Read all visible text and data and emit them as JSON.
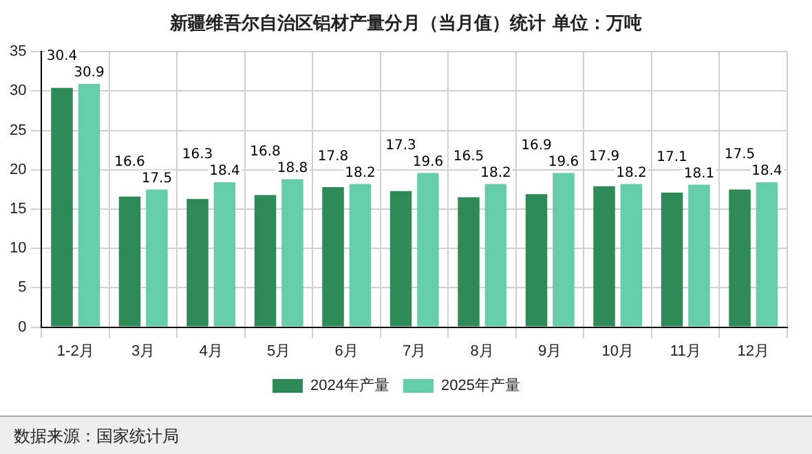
{
  "chart_data": {
    "type": "bar",
    "title": "新疆维吾尔自治区铝材产量分月（当月值）统计  单位：万吨",
    "categories": [
      "1-2月",
      "3月",
      "4月",
      "5月",
      "6月",
      "7月",
      "8月",
      "9月",
      "10月",
      "11月",
      "12月"
    ],
    "series": [
      {
        "name": "2024年产量",
        "color": "#2e8b57",
        "values": [
          30.4,
          16.6,
          16.3,
          16.8,
          17.8,
          17.3,
          16.5,
          16.9,
          17.9,
          17.1,
          17.5
        ]
      },
      {
        "name": "2025年产量",
        "color": "#66cdaa",
        "values": [
          30.9,
          17.5,
          18.4,
          18.8,
          18.2,
          19.6,
          18.2,
          19.6,
          18.2,
          18.1,
          18.4
        ]
      }
    ],
    "ylim": [
      0,
      35
    ],
    "yticks": [
      0,
      5,
      10,
      15,
      20,
      25,
      30,
      35
    ],
    "grid": true,
    "legend": "bottom",
    "data_labels": true,
    "annotations": [
      "数据来源：国家统计局"
    ]
  }
}
